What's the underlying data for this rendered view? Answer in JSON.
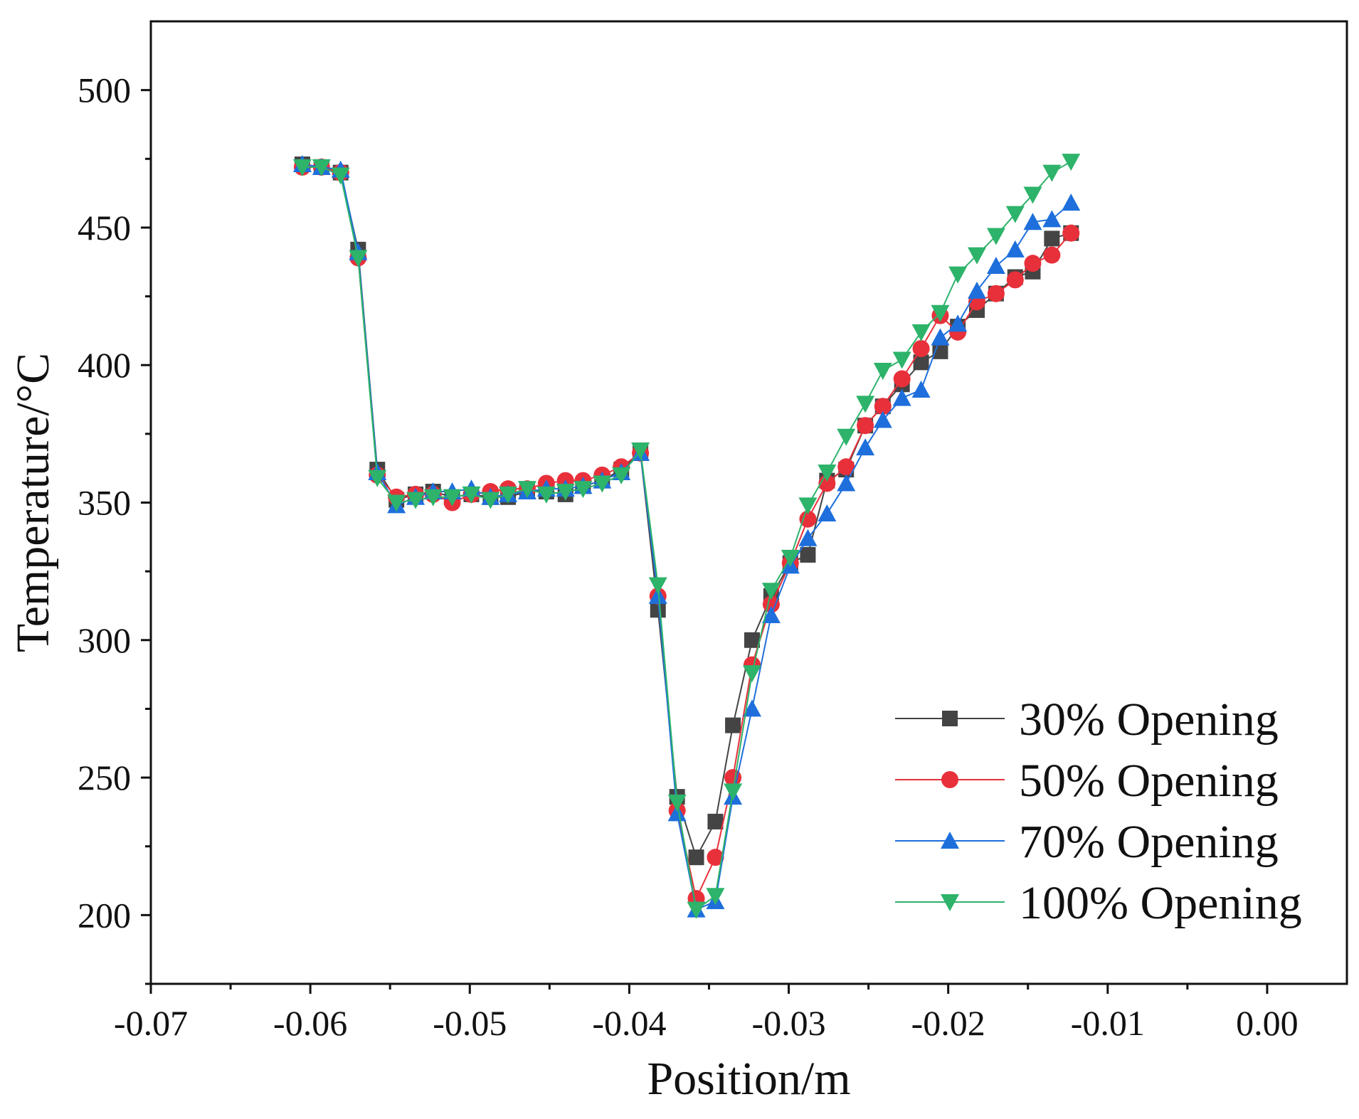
{
  "chart_data": {
    "type": "line",
    "title": "",
    "xlabel": "Position/m",
    "ylabel": "Temperature/°C",
    "xlim": [
      -0.07,
      0.005
    ],
    "ylim": [
      175,
      525
    ],
    "xticks": [
      -0.07,
      -0.06,
      -0.05,
      -0.04,
      -0.03,
      -0.02,
      -0.01,
      0.0
    ],
    "xtick_labels": [
      "-0.07",
      "-0.06",
      "-0.05",
      "-0.04",
      "-0.03",
      "-0.02",
      "-0.01",
      "0.00"
    ],
    "yticks": [
      200,
      250,
      300,
      350,
      400,
      450,
      500
    ],
    "ytick_labels": [
      "200",
      "250",
      "300",
      "350",
      "400",
      "450",
      "500"
    ],
    "legend_position": "bottom-right",
    "x": [
      -0.0605,
      -0.0593,
      -0.0581,
      -0.057,
      -0.0558,
      -0.0546,
      -0.0534,
      -0.0523,
      -0.0511,
      -0.0499,
      -0.0487,
      -0.0476,
      -0.0464,
      -0.0452,
      -0.044,
      -0.0429,
      -0.0417,
      -0.0405,
      -0.0393,
      -0.0382,
      -0.037,
      -0.0358,
      -0.0346,
      -0.0335,
      -0.0323,
      -0.0311,
      -0.0299,
      -0.0288,
      -0.0276,
      -0.0264,
      -0.0252,
      -0.0241,
      -0.0229,
      -0.0217,
      -0.0205,
      -0.0194,
      -0.0182,
      -0.017,
      -0.0158,
      -0.0147,
      -0.0135,
      -0.0123
    ],
    "series": [
      {
        "name": "30% Opening",
        "color": "#444444",
        "marker": "square",
        "values": [
          473,
          472,
          470,
          442,
          362,
          351,
          353,
          354,
          352,
          353,
          352,
          352,
          354,
          354,
          353,
          356,
          358,
          362,
          368,
          311,
          243,
          221,
          234,
          269,
          300,
          316,
          328,
          331,
          358,
          362,
          378,
          385,
          393,
          401,
          405,
          414,
          420,
          426,
          432,
          434,
          446,
          448
        ]
      },
      {
        "name": "50% Opening",
        "color": "#e8303a",
        "marker": "circle",
        "values": [
          472,
          472,
          470,
          439,
          360,
          352,
          353,
          353,
          350,
          353,
          354,
          355,
          355,
          357,
          358,
          358,
          360,
          363,
          368,
          316,
          238,
          206,
          221,
          250,
          291,
          313,
          328,
          344,
          357,
          363,
          378,
          385,
          395,
          406,
          418,
          412,
          423,
          426,
          431,
          437,
          440,
          448
        ]
      },
      {
        "name": "70% Opening",
        "color": "#1e6fdc",
        "marker": "triangle-up",
        "values": [
          473,
          472,
          471,
          441,
          361,
          349,
          352,
          354,
          354,
          355,
          352,
          353,
          354,
          355,
          355,
          356,
          358,
          361,
          368,
          316,
          237,
          202,
          205,
          243,
          275,
          309,
          327,
          337,
          346,
          357,
          370,
          380,
          388,
          391,
          410,
          415,
          427,
          436,
          442,
          452,
          453,
          459
        ]
      },
      {
        "name": "100% Opening",
        "color": "#2db36a",
        "marker": "triangle-down",
        "values": [
          472,
          472,
          469,
          439,
          359,
          350,
          351,
          352,
          352,
          353,
          351,
          353,
          355,
          353,
          354,
          355,
          357,
          360,
          369,
          320,
          241,
          202,
          207,
          245,
          288,
          318,
          330,
          349,
          361,
          374,
          386,
          398,
          402,
          412,
          419,
          433,
          440,
          447,
          455,
          462,
          470,
          474
        ]
      }
    ]
  }
}
